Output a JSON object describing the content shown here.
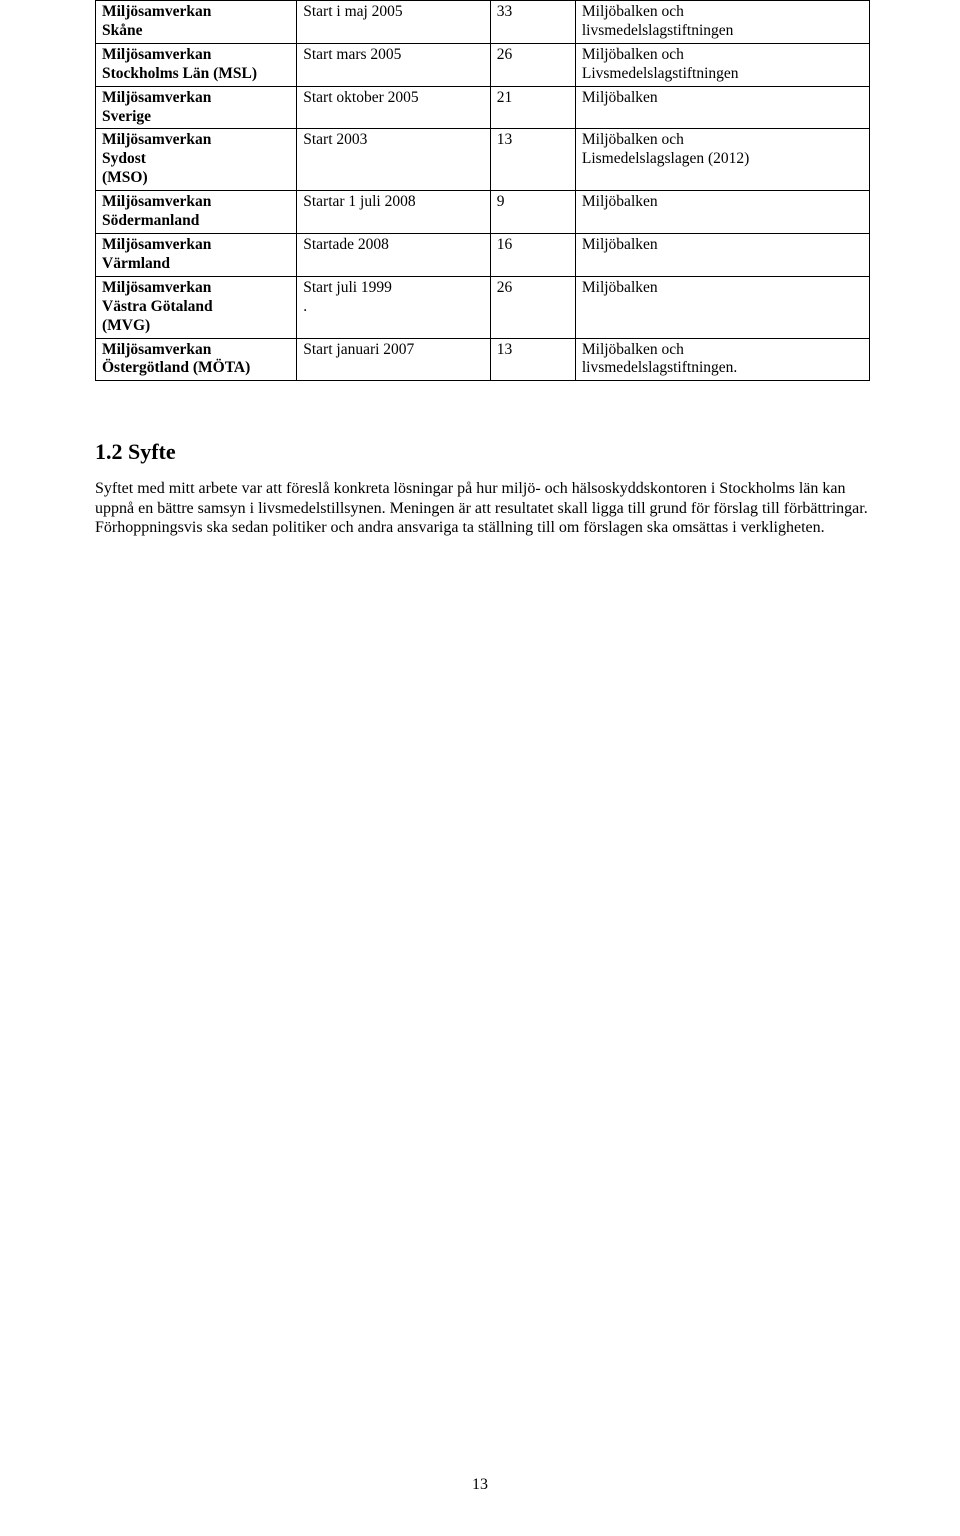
{
  "table": {
    "rows": [
      {
        "org_l1": "Miljösamverkan",
        "org_l2": "Skåne",
        "start": "Start i maj 2005",
        "count": "33",
        "law_l1": "Miljöbalken och",
        "law_l2": "livsmedelslagstiftningen"
      },
      {
        "org_l1": "Miljösamverkan",
        "org_l2": "Stockholms Län (MSL)",
        "start": "Start mars 2005",
        "count": "26",
        "law_l1": "Miljöbalken och",
        "law_l2": "Livsmedelslagstiftningen"
      },
      {
        "org_l1": "Miljösamverkan",
        "org_l2": "Sverige",
        "start": "Start oktober 2005",
        "count": "21",
        "law_l1": "Miljöbalken",
        "law_l2": ""
      },
      {
        "org_l1": "Miljösamverkan",
        "org_l2": "Sydost",
        "org_l3": "(MSO)",
        "start": "Start 2003",
        "count": "13",
        "law_l1": "Miljöbalken och",
        "law_l2": "Lismedelslagslagen (2012)"
      },
      {
        "org_l1": "Miljösamverkan",
        "org_l2": "Södermanland",
        "start": "Startar 1 juli 2008",
        "count": "9",
        "law_l1": "Miljöbalken",
        "law_l2": ""
      },
      {
        "org_l1": "Miljösamverkan",
        "org_l2": "Värmland",
        "start": "Startade 2008",
        "count": "16",
        "law_l1": "Miljöbalken",
        "law_l2": ""
      },
      {
        "org_l1": "Miljösamverkan",
        "org_l2": "Västra Götaland",
        "org_l3": "(MVG)",
        "start_l1": "Start juli 1999",
        "start_l2": ".",
        "count": "26",
        "law_l1": "Miljöbalken",
        "law_l2": ""
      },
      {
        "org_l1": "Miljösamverkan",
        "org_l2": "Östergötland (MÖTA)",
        "start": "Start januari 2007",
        "count": "13",
        "law_l1": "Miljöbalken och",
        "law_l2": "livsmedelslagstiftningen."
      }
    ]
  },
  "section": {
    "heading": "1.2 Syfte",
    "paragraph": "Syftet med mitt arbete var att föreslå konkreta lösningar på hur miljö- och hälsoskyddskontoren i Stockholms län kan uppnå en bättre samsyn i livsmedelstillsynen. Meningen är att resultatet skall ligga till grund för förslag till förbättringar. Förhoppningsvis ska sedan politiker och andra ansvariga ta ställning till om förslagen ska omsättas i verkligheten."
  },
  "page_number": "13"
}
